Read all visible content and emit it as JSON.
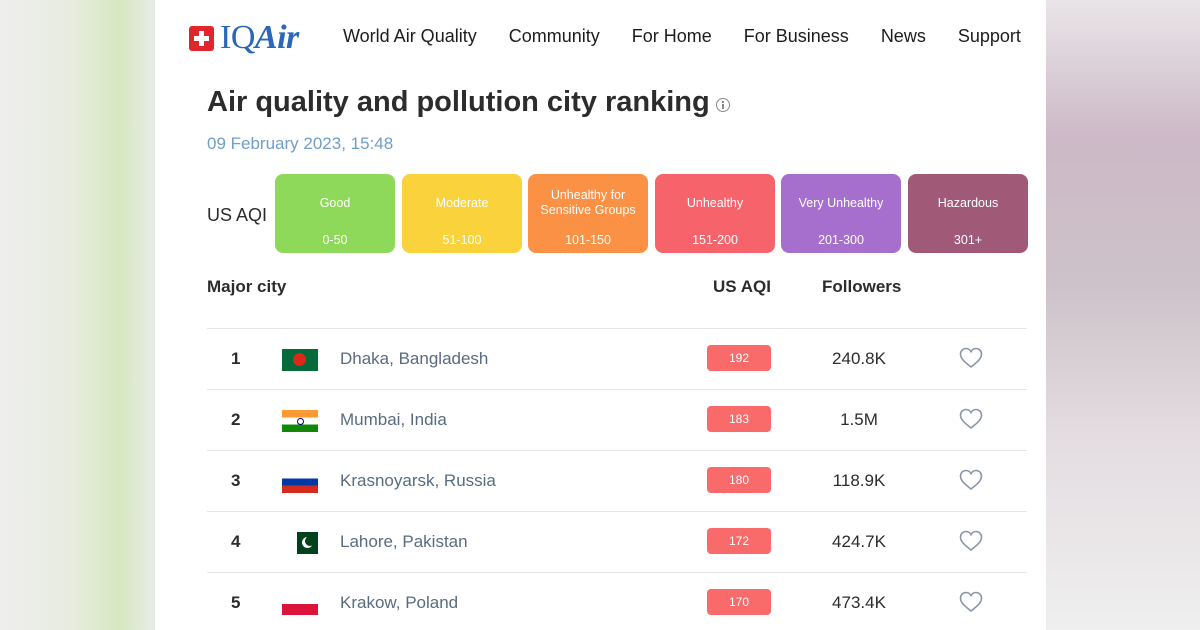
{
  "header": {
    "logo": {
      "icon": "swiss-cross-icon",
      "text_iq": "IQ",
      "text_air": "Air"
    },
    "nav": [
      "World Air Quality",
      "Community",
      "For Home",
      "For Business",
      "News",
      "Support"
    ]
  },
  "page": {
    "title": "Air quality and pollution city ranking",
    "date": "09 February 2023, 15:48"
  },
  "legend": {
    "label": "US AQI",
    "levels": [
      {
        "name": "Good",
        "range": "0-50",
        "color": "#8fd95a"
      },
      {
        "name": "Moderate",
        "range": "51-100",
        "color": "#f9d23c"
      },
      {
        "name": "Unhealthy for Sensitive Groups",
        "range": "101-150",
        "color": "#fa9144"
      },
      {
        "name": "Unhealthy",
        "range": "151-200",
        "color": "#f7636b"
      },
      {
        "name": "Very Unhealthy",
        "range": "201-300",
        "color": "#a76fcd"
      },
      {
        "name": "Hazardous",
        "range": "301+",
        "color": "#a05a77"
      }
    ]
  },
  "table": {
    "headers": {
      "city": "Major city",
      "aqi": "US AQI",
      "followers": "Followers"
    },
    "rows": [
      {
        "rank": "1",
        "flag": "bangladesh-flag-icon",
        "city": "Dhaka, Bangladesh",
        "aqi": "192",
        "followers": "240.8K"
      },
      {
        "rank": "2",
        "flag": "india-flag-icon",
        "city": "Mumbai, India",
        "aqi": "183",
        "followers": "1.5M"
      },
      {
        "rank": "3",
        "flag": "russia-flag-icon",
        "city": "Krasnoyarsk, Russia",
        "aqi": "180",
        "followers": "118.9K"
      },
      {
        "rank": "4",
        "flag": "pakistan-flag-icon",
        "city": "Lahore, Pakistan",
        "aqi": "172",
        "followers": "424.7K"
      },
      {
        "rank": "5",
        "flag": "poland-flag-icon",
        "city": "Krakow, Poland",
        "aqi": "170",
        "followers": "473.4K"
      }
    ],
    "aqi_badge_color": "#f96a6a"
  }
}
